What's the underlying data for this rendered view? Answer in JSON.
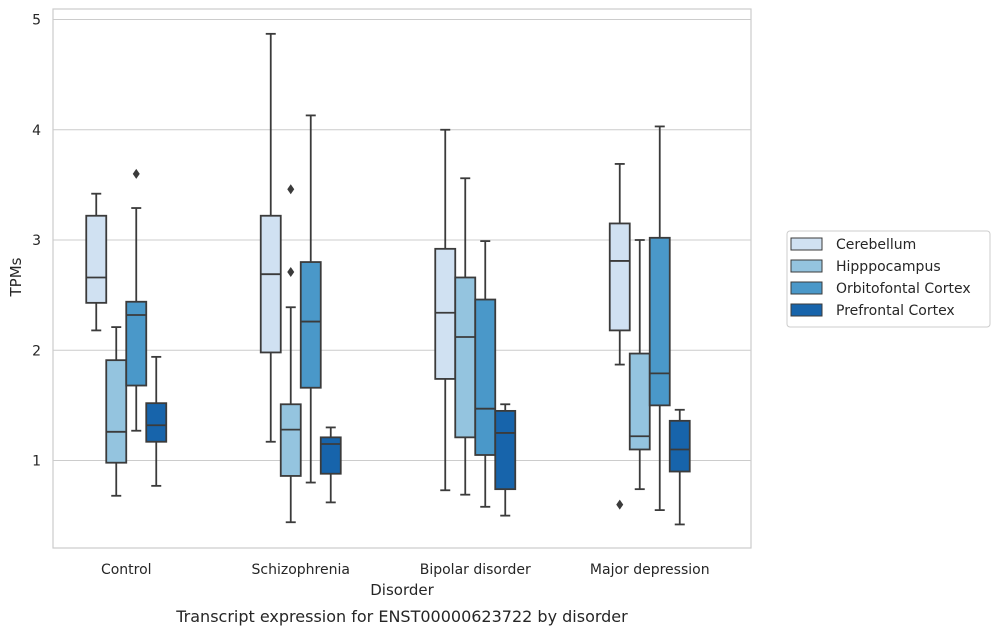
{
  "caption": "Transcript expression for ENST00000623722 by disorder",
  "chart_data": {
    "type": "box",
    "xlabel": "Disorder",
    "ylabel": "TPMs",
    "ylim": [
      0.2,
      5.1
    ],
    "yticks": [
      1,
      2,
      3,
      4,
      5
    ],
    "grid": "horizontal",
    "legend_position": "right",
    "categories": [
      "Control",
      "Schizophrenia",
      "Bipolar disorder",
      "Major depression"
    ],
    "series": [
      {
        "name": "Cerebellum",
        "color": "#d0e1f2",
        "boxes": [
          {
            "whisker_low": 2.18,
            "q1": 2.43,
            "median": 2.66,
            "q3": 3.22,
            "whisker_high": 3.42,
            "outliers": []
          },
          {
            "whisker_low": 1.17,
            "q1": 1.98,
            "median": 2.69,
            "q3": 3.22,
            "whisker_high": 4.87,
            "outliers": []
          },
          {
            "whisker_low": 0.73,
            "q1": 1.74,
            "median": 2.34,
            "q3": 2.92,
            "whisker_high": 4.0,
            "outliers": []
          },
          {
            "whisker_low": 1.87,
            "q1": 2.18,
            "median": 2.81,
            "q3": 3.15,
            "whisker_high": 3.69,
            "outliers": [
              0.6
            ]
          }
        ]
      },
      {
        "name": "Hipppocampus",
        "color": "#94c4df",
        "boxes": [
          {
            "whisker_low": 0.68,
            "q1": 0.98,
            "median": 1.26,
            "q3": 1.91,
            "whisker_high": 2.21,
            "outliers": []
          },
          {
            "whisker_low": 0.44,
            "q1": 0.86,
            "median": 1.28,
            "q3": 1.51,
            "whisker_high": 2.39,
            "outliers": [
              2.71,
              3.46
            ]
          },
          {
            "whisker_low": 0.69,
            "q1": 1.21,
            "median": 2.12,
            "q3": 2.66,
            "whisker_high": 3.56,
            "outliers": []
          },
          {
            "whisker_low": 0.74,
            "q1": 1.1,
            "median": 1.22,
            "q3": 1.97,
            "whisker_high": 3.0,
            "outliers": []
          }
        ]
      },
      {
        "name": "Orbitofontal Cortex",
        "color": "#4a98c9",
        "boxes": [
          {
            "whisker_low": 1.27,
            "q1": 1.68,
            "median": 2.32,
            "q3": 2.44,
            "whisker_high": 3.29,
            "outliers": [
              3.6
            ]
          },
          {
            "whisker_low": 0.8,
            "q1": 1.66,
            "median": 2.26,
            "q3": 2.8,
            "whisker_high": 4.13,
            "outliers": []
          },
          {
            "whisker_low": 0.58,
            "q1": 1.05,
            "median": 1.47,
            "q3": 2.46,
            "whisker_high": 2.99,
            "outliers": []
          },
          {
            "whisker_low": 0.55,
            "q1": 1.5,
            "median": 1.79,
            "q3": 3.02,
            "whisker_high": 4.03,
            "outliers": []
          }
        ]
      },
      {
        "name": "Prefrontal Cortex",
        "color": "#1764ab",
        "boxes": [
          {
            "whisker_low": 0.77,
            "q1": 1.17,
            "median": 1.32,
            "q3": 1.52,
            "whisker_high": 1.94,
            "outliers": []
          },
          {
            "whisker_low": 0.62,
            "q1": 0.88,
            "median": 1.15,
            "q3": 1.21,
            "whisker_high": 1.3,
            "outliers": []
          },
          {
            "whisker_low": 0.5,
            "q1": 0.74,
            "median": 1.25,
            "q3": 1.45,
            "whisker_high": 1.51,
            "outliers": []
          },
          {
            "whisker_low": 0.42,
            "q1": 0.9,
            "median": 1.1,
            "q3": 1.36,
            "whisker_high": 1.46,
            "outliers": []
          }
        ]
      }
    ]
  }
}
